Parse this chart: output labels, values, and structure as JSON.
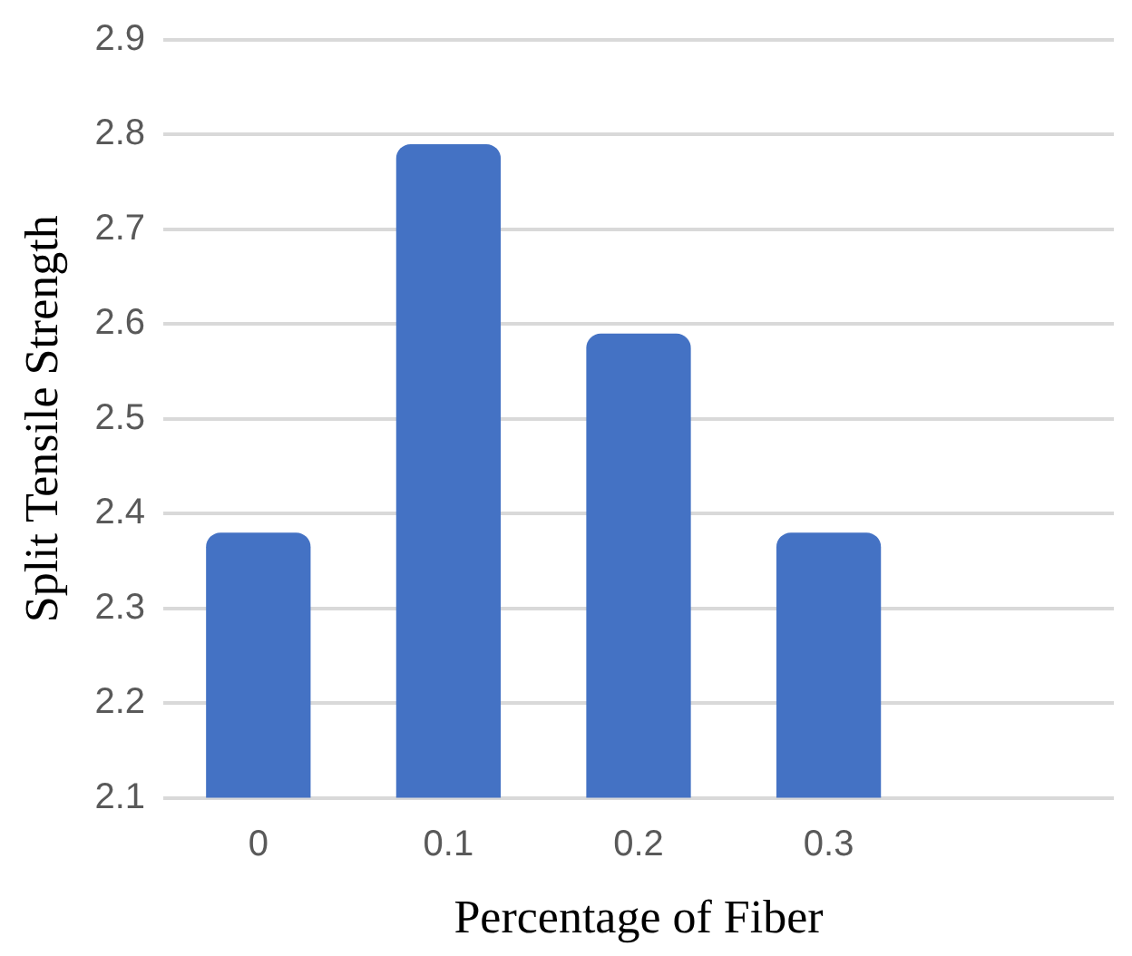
{
  "chart_data": {
    "type": "bar",
    "xlabel": "Percentage of Fiber",
    "ylabel": "Split Tensile Strength",
    "categories": [
      "0",
      "0.1",
      "0.2",
      "0.3",
      null
    ],
    "values": [
      2.38,
      2.79,
      2.59,
      2.38,
      null
    ],
    "color": "#4472c4",
    "ylim": [
      2.1,
      2.9
    ],
    "yticks": [
      2.1,
      2.2,
      2.3,
      2.4,
      2.5,
      2.6,
      2.7,
      2.8,
      2.9
    ],
    "grid": "y",
    "legend": false
  }
}
